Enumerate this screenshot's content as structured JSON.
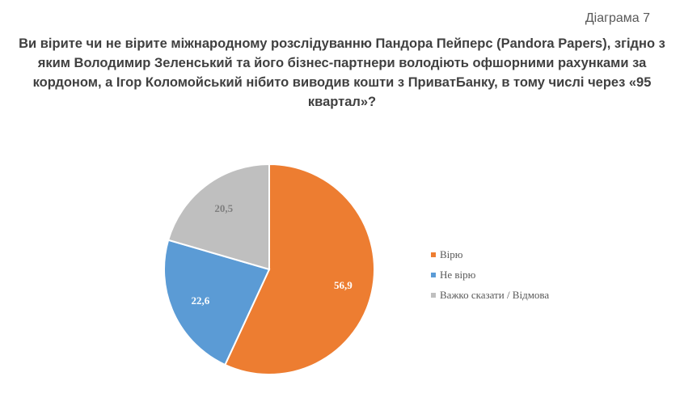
{
  "diagram_label": "Діаграма 7",
  "chart_data": {
    "type": "pie",
    "title": "Ви вірите чи не вірите міжнародному розслідуванню Пандора Пейперс (Pandora Papers), згідно з яким Володимир Зеленський та його бізнес-партнери володіють  офшорними рахунками за кордоном, а Ігор Коломойський нібито виводив кошти з ПриватБанку, в тому числі через «95 квартал»?",
    "categories": [
      "Вірю",
      "Не вірю",
      "Важко сказати / Відмова"
    ],
    "values": [
      56.9,
      22.6,
      20.5
    ],
    "data_labels": [
      "56,9",
      "22,6",
      "20,5"
    ],
    "colors": [
      "#ED7D31",
      "#5B9BD5",
      "#BFBFBF"
    ],
    "label_colors": [
      "#ffffff",
      "#ffffff",
      "#7f7f7f"
    ],
    "legend_position": "right"
  }
}
